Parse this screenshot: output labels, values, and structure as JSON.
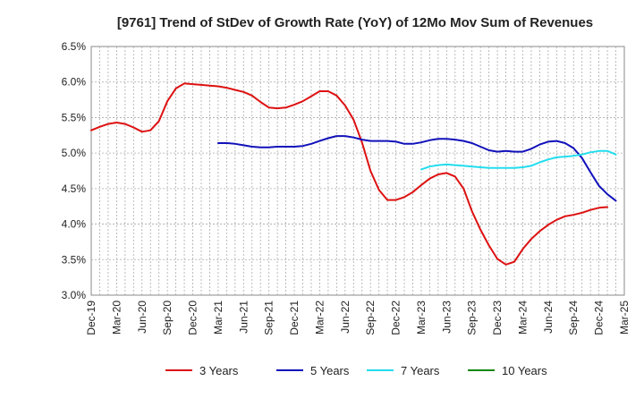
{
  "chart_data": {
    "type": "line",
    "title": "[9761]  Trend of StDev of Growth Rate (YoY) of 12Mo Mov Sum of Revenues",
    "xlabel": "",
    "ylabel": "",
    "ylim": [
      3.0,
      6.5
    ],
    "yticks": [
      "6.5%",
      "6.0%",
      "5.5%",
      "5.0%",
      "4.5%",
      "4.0%",
      "3.5%",
      "3.0%"
    ],
    "ytick_values": [
      6.5,
      6.0,
      5.5,
      5.0,
      4.5,
      4.0,
      3.5,
      3.0
    ],
    "x_ticks": [
      "Dec-19",
      "Mar-20",
      "Jun-20",
      "Sep-20",
      "Dec-20",
      "Mar-21",
      "Jun-21",
      "Sep-21",
      "Dec-21",
      "Mar-22",
      "Jun-22",
      "Sep-22",
      "Dec-22",
      "Mar-23",
      "Jun-23",
      "Sep-23",
      "Dec-23",
      "Mar-24",
      "Jun-24",
      "Sep-24",
      "Dec-24",
      "Mar-25"
    ],
    "x_months_total": 63,
    "grid": true,
    "legend_position": "bottom",
    "series": [
      {
        "name": "3 Years",
        "color": "#dd1111",
        "start_month": 0,
        "values": [
          5.32,
          5.37,
          5.41,
          5.43,
          5.41,
          5.36,
          5.3,
          5.32,
          5.45,
          5.73,
          5.91,
          5.98,
          5.97,
          5.96,
          5.95,
          5.94,
          5.92,
          5.89,
          5.86,
          5.81,
          5.72,
          5.64,
          5.63,
          5.64,
          5.68,
          5.73,
          5.8,
          5.87,
          5.87,
          5.81,
          5.67,
          5.47,
          5.15,
          4.75,
          4.48,
          4.34,
          4.34,
          4.38,
          4.45,
          4.55,
          4.64,
          4.7,
          4.72,
          4.67,
          4.5,
          4.18,
          3.92,
          3.7,
          3.51,
          3.43,
          3.47,
          3.65,
          3.79,
          3.9,
          3.99,
          4.06,
          4.11,
          4.13,
          4.16,
          4.2,
          4.23,
          4.24
        ]
      },
      {
        "name": "5 Years",
        "color": "#1111bb",
        "start_month": 15,
        "values": [
          5.14,
          5.14,
          5.13,
          5.11,
          5.09,
          5.08,
          5.08,
          5.09,
          5.09,
          5.09,
          5.1,
          5.13,
          5.17,
          5.21,
          5.24,
          5.24,
          5.22,
          5.19,
          5.17,
          5.17,
          5.17,
          5.16,
          5.13,
          5.13,
          5.15,
          5.18,
          5.2,
          5.2,
          5.19,
          5.17,
          5.14,
          5.09,
          5.04,
          5.02,
          5.03,
          5.02,
          5.02,
          5.06,
          5.12,
          5.16,
          5.17,
          5.14,
          5.07,
          4.93,
          4.73,
          4.54,
          4.42,
          4.33
        ]
      },
      {
        "name": "7 Years",
        "color": "#22ddee",
        "start_month": 39,
        "values": [
          4.77,
          4.81,
          4.83,
          4.84,
          4.83,
          4.82,
          4.81,
          4.8,
          4.79,
          4.79,
          4.79,
          4.79,
          4.8,
          4.82,
          4.87,
          4.91,
          4.94,
          4.95,
          4.96,
          4.98,
          5.01,
          5.03,
          5.03,
          4.98
        ]
      },
      {
        "name": "10 Years",
        "color": "#118811",
        "start_month": 0,
        "values": []
      }
    ]
  }
}
